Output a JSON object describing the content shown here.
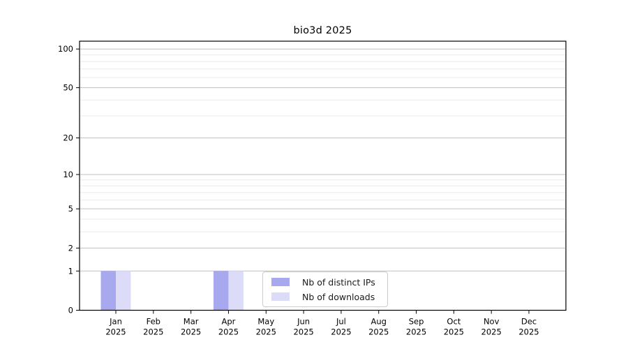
{
  "chart_data": {
    "type": "bar",
    "title": "bio3d 2025",
    "categories": [
      "Jan",
      "Feb",
      "Mar",
      "Apr",
      "May",
      "Jun",
      "Jul",
      "Aug",
      "Sep",
      "Oct",
      "Nov",
      "Dec"
    ],
    "category_year": "2025",
    "series": [
      {
        "name": "Nb of distinct IPs",
        "color": "#a8a8ef",
        "values": [
          1,
          0,
          0,
          1,
          0,
          0,
          0,
          0,
          0,
          0,
          0,
          0
        ]
      },
      {
        "name": "Nb of downloads",
        "color": "#dcdcf8",
        "values": [
          1,
          0,
          0,
          1,
          0,
          0,
          0,
          0,
          0,
          0,
          0,
          0
        ]
      }
    ],
    "yscale": "log10(1+y)",
    "ylim": [
      0,
      100
    ],
    "y_major_ticks": [
      0,
      1,
      2,
      5,
      10,
      20,
      50,
      100
    ],
    "y_minor_gridlines": [
      3,
      4,
      6,
      7,
      8,
      9,
      30,
      40,
      60,
      70,
      80,
      90
    ],
    "grid": "horizontal",
    "legend_position": "inside-bottom-center",
    "colors": {
      "background": "#ffffff",
      "axis": "#000000",
      "major_grid": "#c0c0c0",
      "minor_grid": "#ebebeb",
      "text": "#000000"
    }
  }
}
